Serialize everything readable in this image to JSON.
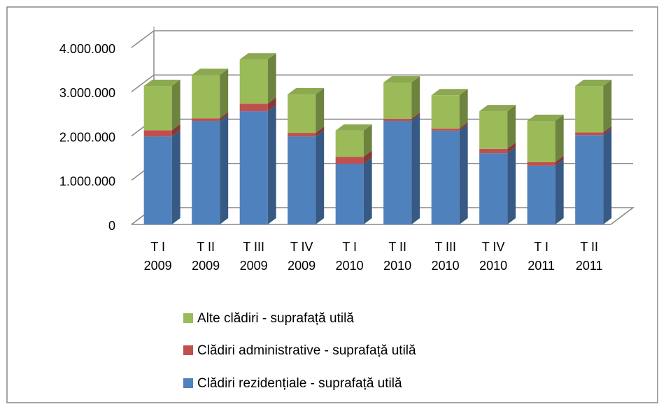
{
  "chart_data": {
    "type": "bar3d_stacked",
    "categories": [
      "T I 2009",
      "T II 2009",
      "T III 2009",
      "T IV 2009",
      "T I 2010",
      "T II 2010",
      "T III 2010",
      "T IV 2010",
      "T I 2011",
      "T II 2011"
    ],
    "series": [
      {
        "name": "Clădiri rezidențiale - suprafață utilă",
        "color": "#4f81bd",
        "values": [
          1990000,
          2340000,
          2560000,
          1990000,
          1370000,
          2340000,
          2120000,
          1610000,
          1330000,
          2020000
        ]
      },
      {
        "name": "Clădiri administrative - suprafață utilă",
        "color": "#c0504d",
        "values": [
          140000,
          60000,
          170000,
          80000,
          160000,
          50000,
          50000,
          100000,
          80000,
          60000
        ]
      },
      {
        "name": "Alte clădiri - suprafață utilă",
        "color": "#9bbb59",
        "values": [
          1000000,
          980000,
          1000000,
          870000,
          590000,
          820000,
          750000,
          850000,
          930000,
          1050000
        ]
      }
    ],
    "ylim": [
      0,
      4000000
    ],
    "yticks": [
      0,
      {
        "value": 1000000,
        "label": "1.000.000"
      },
      {
        "value": 2000000,
        "label": "2.000.000"
      },
      {
        "value": 3000000,
        "label": "3.000.000"
      },
      {
        "value": 4000000,
        "label": "4.000.000"
      }
    ],
    "grid": true
  }
}
